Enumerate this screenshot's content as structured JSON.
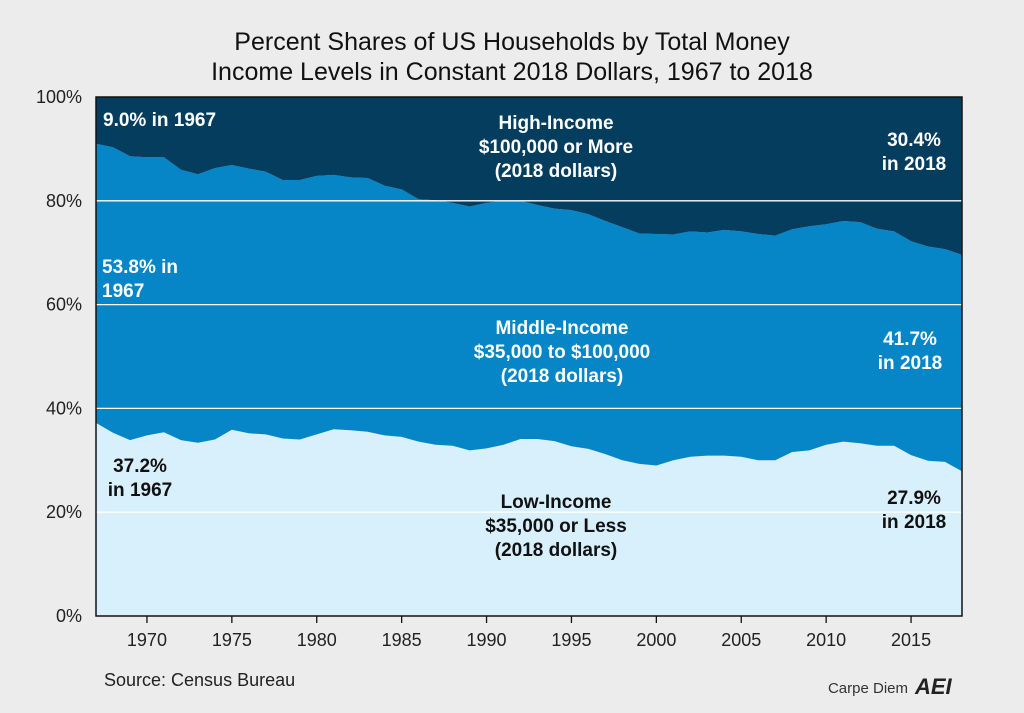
{
  "chart_data": {
    "type": "area",
    "stacked": true,
    "title": [
      "Percent Shares of US Households by Total Money",
      "Income Levels in Constant 2018 Dollars, 1967 to 2018"
    ],
    "xlabel": "",
    "ylabel": "",
    "xlim": [
      1967,
      2018
    ],
    "ylim": [
      0,
      100
    ],
    "x_ticks": [
      1970,
      1975,
      1980,
      1985,
      1990,
      1995,
      2000,
      2005,
      2010,
      2015
    ],
    "y_ticks": [
      {
        "value": 0,
        "label": "0%"
      },
      {
        "value": 20,
        "label": "20%"
      },
      {
        "value": 40,
        "label": "40%"
      },
      {
        "value": 60,
        "label": "60%"
      },
      {
        "value": 80,
        "label": "80%"
      },
      {
        "value": 100,
        "label": "100%"
      }
    ],
    "grid": "horizontal",
    "x": [
      1967,
      1968,
      1969,
      1970,
      1971,
      1972,
      1973,
      1974,
      1975,
      1976,
      1977,
      1978,
      1979,
      1980,
      1981,
      1982,
      1983,
      1984,
      1985,
      1986,
      1987,
      1988,
      1989,
      1990,
      1991,
      1992,
      1993,
      1994,
      1995,
      1996,
      1997,
      1998,
      1999,
      2000,
      2001,
      2002,
      2003,
      2004,
      2005,
      2006,
      2007,
      2008,
      2009,
      2010,
      2011,
      2012,
      2013,
      2014,
      2015,
      2016,
      2017,
      2018
    ],
    "series": [
      {
        "name": "Low-Income",
        "color": "#d8f0fb",
        "values": [
          37.2,
          35.3,
          33.9,
          34.8,
          35.4,
          33.9,
          33.4,
          34.0,
          35.9,
          35.2,
          35.0,
          34.2,
          34.0,
          35.0,
          36.0,
          35.8,
          35.5,
          34.8,
          34.5,
          33.6,
          33.0,
          32.8,
          31.9,
          32.3,
          33.0,
          34.1,
          34.1,
          33.7,
          32.7,
          32.2,
          31.2,
          30.0,
          29.3,
          29.0,
          30.0,
          30.7,
          30.9,
          30.9,
          30.7,
          30.0,
          30.0,
          31.6,
          31.9,
          33.0,
          33.6,
          33.3,
          32.8,
          32.8,
          31.0,
          29.9,
          29.7,
          27.9
        ]
      },
      {
        "name": "Middle-Income",
        "color": "#0686c6",
        "values": [
          53.8,
          55.0,
          54.7,
          53.6,
          53.0,
          52.1,
          51.7,
          52.3,
          51.0,
          51.0,
          50.6,
          49.8,
          50.0,
          49.8,
          49.0,
          48.7,
          48.9,
          48.1,
          47.7,
          46.7,
          47.1,
          46.8,
          47.0,
          47.3,
          47.0,
          45.9,
          45.1,
          44.8,
          45.5,
          45.2,
          44.9,
          44.9,
          44.4,
          44.6,
          43.5,
          43.4,
          43.0,
          43.5,
          43.4,
          43.6,
          43.3,
          42.9,
          43.2,
          42.5,
          42.5,
          42.6,
          41.8,
          41.3,
          41.2,
          41.3,
          41.0,
          41.7
        ]
      },
      {
        "name": "High-Income",
        "color": "#053d5e",
        "values": [
          9.0,
          9.7,
          11.4,
          11.6,
          11.6,
          14.0,
          14.9,
          13.7,
          13.1,
          13.8,
          14.4,
          16.0,
          16.0,
          15.2,
          15.0,
          15.5,
          15.6,
          17.1,
          17.8,
          19.7,
          19.9,
          20.4,
          21.1,
          20.4,
          20.0,
          20.0,
          20.8,
          21.5,
          21.8,
          22.6,
          23.9,
          25.1,
          26.3,
          26.4,
          26.5,
          25.9,
          26.1,
          25.6,
          25.9,
          26.4,
          26.7,
          25.5,
          24.9,
          24.5,
          23.9,
          24.1,
          25.4,
          25.9,
          27.8,
          28.8,
          29.3,
          30.4
        ]
      }
    ],
    "annotations": [
      {
        "id": "high-1967",
        "lines": [
          "9.0% in 1967"
        ],
        "tone": "light"
      },
      {
        "id": "high-label",
        "lines": [
          "High-Income",
          "$100,000 or More",
          "(2018 dollars)"
        ],
        "tone": "light"
      },
      {
        "id": "high-2018",
        "lines": [
          "30.4%",
          "in 2018"
        ],
        "tone": "light"
      },
      {
        "id": "mid-1967",
        "lines": [
          "53.8% in",
          "1967"
        ],
        "tone": "light"
      },
      {
        "id": "mid-label",
        "lines": [
          "Middle-Income",
          "$35,000 to $100,000",
          "(2018 dollars)"
        ],
        "tone": "light"
      },
      {
        "id": "mid-2018",
        "lines": [
          "41.7%",
          "in 2018"
        ],
        "tone": "light"
      },
      {
        "id": "low-1967",
        "lines": [
          "37.2%",
          "in 1967"
        ],
        "tone": "dark"
      },
      {
        "id": "low-label",
        "lines": [
          "Low-Income",
          "$35,000 or Less",
          "(2018 dollars)"
        ],
        "tone": "dark"
      },
      {
        "id": "low-2018",
        "lines": [
          "27.9%",
          "in 2018"
        ],
        "tone": "dark"
      }
    ]
  },
  "footer": {
    "source": "Source: Census Bureau",
    "brand": "Carpe Diem",
    "logo": "AEI"
  }
}
